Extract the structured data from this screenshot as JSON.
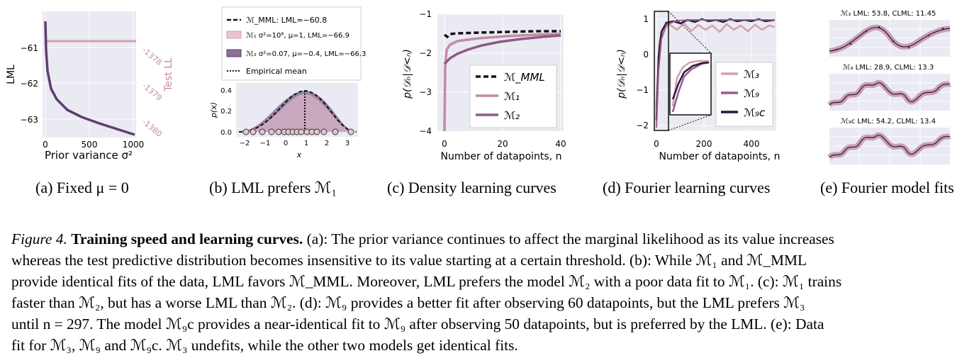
{
  "colors": {
    "light_pink": "#d4a0ae",
    "mid_purple": "#9b5b8f",
    "dark_purple": "#5e3e6e",
    "very_dark": "#2a1a3e",
    "grid_bg": "#eaeaf2"
  },
  "panel_a": {
    "ylabel": "LML",
    "ylabel2": "Test LL",
    "xlabel": "Prior variance σ²",
    "yticks": [
      "−61",
      "−62",
      "−63"
    ],
    "y2ticks": [
      "-1378",
      "-1379",
      "-1380"
    ],
    "xticks": [
      "0",
      "500",
      "1000"
    ],
    "caption": "(a) Fixed μ = 0"
  },
  "panel_b": {
    "legend": [
      {
        "label": "ℳ_MML: LML=−60.8"
      },
      {
        "label": "ℳ₁ σ²=10⁶, μ=1, LML=−66.9"
      },
      {
        "label": "ℳ₂ σ²=0.07, μ=−0.4, LML=−66.3"
      },
      {
        "label": "Empirical mean"
      }
    ],
    "ylabel": "p(x)",
    "xlabel": "x",
    "yticks": [
      "0.4",
      "0.2",
      "0.0"
    ],
    "xticks": [
      "−2",
      "−1",
      "0",
      "1",
      "2",
      "3"
    ],
    "caption": "(b) LML prefers ℳ₁"
  },
  "panel_c": {
    "ylabel": "p(𝒟ₙ|𝒟<ₙ)",
    "xlabel": "Number of datapoints, n",
    "yticks": [
      "−1",
      "−2",
      "−3",
      "−4"
    ],
    "xticks": [
      "0",
      "20",
      "40"
    ],
    "legend": [
      "ℳ_MML",
      "ℳ₁",
      "ℳ₂"
    ],
    "caption": "(c) Density learning curves"
  },
  "panel_d": {
    "ylabel": "p(𝒟ₙ|𝒟<ₙ)",
    "xlabel": "Number of datapoints, n",
    "yticks": [
      "1",
      "0",
      "−1",
      "−2"
    ],
    "xticks": [
      "0",
      "200",
      "400"
    ],
    "legend": [
      "ℳ₃",
      "ℳ₉",
      "ℳ₉c"
    ],
    "caption": "(d) Fourier learning curves"
  },
  "panel_e": {
    "titles": [
      "ℳ₃ LML: 53.8, CLML: 11.45",
      "ℳ₉ LML: 28.9, CLML: 13.3",
      "ℳ₉c LML: 54.2, CLML: 13.4"
    ],
    "caption": "(e) Fourier model fits"
  },
  "figure_caption": {
    "label": "Figure 4.",
    "title": "Training speed and learning curves.",
    "lines": [
      "(a): The prior variance continues to affect the marginal likelihood as its value increases",
      "whereas the test predictive distribution becomes insensitive to its value starting at a certain threshold. (b): While ℳ₁ and ℳ_MML",
      "provide identical fits of the data, LML favors ℳ_MML. Moreover, LML prefers the model ℳ₂ with a poor data fit to ℳ₁. (c): ℳ₁ trains",
      "faster than ℳ₂, but has a worse LML than ℳ₂. (d): ℳ₉ provides a better fit after observing 60 datapoints, but the LML prefers ℳ₃",
      "until n = 297. The model ℳ₉c provides a near-identical fit to ℳ₉ after observing 50 datapoints, but is preferred by the LML. (e): Data",
      "fit for ℳ₃, ℳ₉ and ℳ₉c. ℳ₃ undefits, while the other two models get identical fits."
    ]
  }
}
